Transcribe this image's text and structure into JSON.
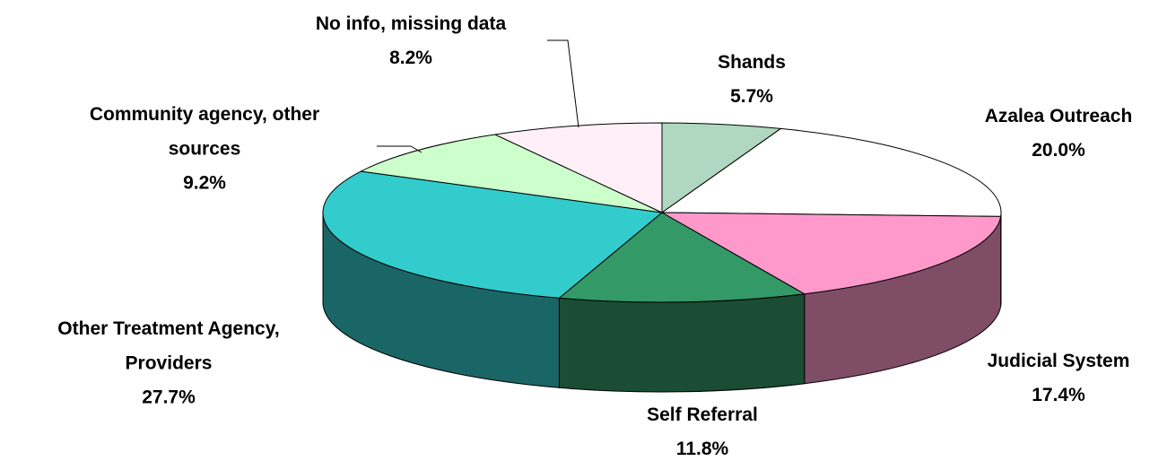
{
  "chart_data": {
    "type": "pie3d",
    "categories": [
      "Shands",
      "Azalea Outreach",
      "Judicial System",
      "Self Referral",
      "Other Treatment Agency, Providers",
      "Community agency, other sources",
      "No info, missing data"
    ],
    "values": [
      5.7,
      20.0,
      17.4,
      11.8,
      27.7,
      9.2,
      8.2
    ],
    "value_labels": [
      "5.7%",
      "20.0%",
      "17.4%",
      "11.8%",
      "27.7%",
      "9.2%",
      "8.2%"
    ],
    "colors": [
      "#b0d8c0",
      "#ffffff",
      "#ff99cc",
      "#339966",
      "#33cccc",
      "#ccffcc",
      "#fff0f8"
    ]
  }
}
